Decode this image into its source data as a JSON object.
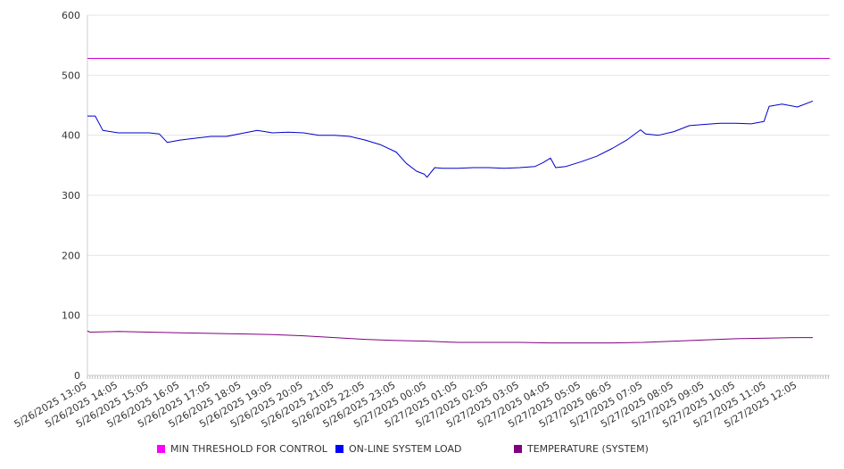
{
  "chart_data": {
    "type": "line",
    "title": "",
    "xlabel": "",
    "ylabel": "",
    "ylim": [
      0,
      600
    ],
    "yticks": [
      0,
      100,
      200,
      300,
      400,
      500,
      600
    ],
    "grid": true,
    "legend_position": "bottom",
    "categories": [
      "5/26/2025 13:05",
      "5/26/2025 14:05",
      "5/26/2025 15:05",
      "5/26/2025 16:05",
      "5/26/2025 17:05",
      "5/26/2025 18:05",
      "5/26/2025 19:05",
      "5/26/2025 20:05",
      "5/26/2025 21:05",
      "5/26/2025 22:05",
      "5/26/2025 23:05",
      "5/27/2025 00:05",
      "5/27/2025 01:05",
      "5/27/2025 02:05",
      "5/27/2025 03:05",
      "5/27/2025 04:05",
      "5/27/2025 05:05",
      "5/27/2025 06:05",
      "5/27/2025 07:05",
      "5/27/2025 08:05",
      "5/27/2025 09:05",
      "5/27/2025 10:05",
      "5/27/2025 11:05",
      "5/27/2025 12:05"
    ],
    "series": [
      {
        "name": "MIN THRESHOLD FOR CONTROL",
        "color": "#cc00cc",
        "x": [
          "5/26/2025 13:05",
          "5/27/2025 12:05"
        ],
        "extend_to_end": true,
        "values": [
          528,
          528
        ]
      },
      {
        "name": "ON-LINE SYSTEM LOAD",
        "color": "#0000cc",
        "x": [
          "5/26/2025 13:05",
          "5/26/2025 13:20",
          "5/26/2025 13:35",
          "5/26/2025 14:05",
          "5/26/2025 14:35",
          "5/26/2025 15:05",
          "5/26/2025 15:25",
          "5/26/2025 15:40",
          "5/26/2025 16:05",
          "5/26/2025 16:35",
          "5/26/2025 17:05",
          "5/26/2025 17:35",
          "5/26/2025 18:05",
          "5/26/2025 18:35",
          "5/26/2025 19:05",
          "5/26/2025 19:35",
          "5/26/2025 20:05",
          "5/26/2025 20:35",
          "5/26/2025 21:05",
          "5/26/2025 21:35",
          "5/26/2025 22:05",
          "5/26/2025 22:35",
          "5/26/2025 23:05",
          "5/26/2025 23:25",
          "5/26/2025 23:45",
          "5/27/2025 00:00",
          "5/27/2025 00:05",
          "5/27/2025 00:20",
          "5/27/2025 00:35",
          "5/27/2025 01:05",
          "5/27/2025 01:35",
          "5/27/2025 02:05",
          "5/27/2025 02:35",
          "5/27/2025 03:05",
          "5/27/2025 03:35",
          "5/27/2025 03:50",
          "5/27/2025 04:05",
          "5/27/2025 04:15",
          "5/27/2025 04:35",
          "5/27/2025 05:05",
          "5/27/2025 05:35",
          "5/27/2025 06:05",
          "5/27/2025 06:35",
          "5/27/2025 07:00",
          "5/27/2025 07:10",
          "5/27/2025 07:35",
          "5/27/2025 08:05",
          "5/27/2025 08:35",
          "5/27/2025 09:05",
          "5/27/2025 09:35",
          "5/27/2025 10:05",
          "5/27/2025 10:35",
          "5/27/2025 11:00",
          "5/27/2025 11:10",
          "5/27/2025 11:35",
          "5/27/2025 12:05",
          "5/27/2025 12:35"
        ],
        "values": [
          432,
          432,
          408,
          404,
          404,
          404,
          402,
          388,
          392,
          395,
          398,
          398,
          403,
          408,
          404,
          405,
          404,
          400,
          400,
          398,
          392,
          384,
          372,
          353,
          340,
          335,
          330,
          346,
          345,
          345,
          346,
          346,
          345,
          346,
          348,
          354,
          362,
          346,
          348,
          356,
          365,
          378,
          393,
          409,
          402,
          400,
          406,
          416,
          418,
          420,
          420,
          419,
          423,
          448,
          452,
          447,
          457
        ]
      },
      {
        "name": "TEMPERATURE (SYSTEM)",
        "color": "#800080",
        "x": [
          "5/26/2025 13:05",
          "5/26/2025 13:10",
          "5/26/2025 14:05",
          "5/26/2025 15:05",
          "5/26/2025 16:05",
          "5/26/2025 17:05",
          "5/26/2025 18:05",
          "5/26/2025 19:05",
          "5/26/2025 20:05",
          "5/26/2025 21:05",
          "5/26/2025 22:05",
          "5/26/2025 23:05",
          "5/27/2025 00:05",
          "5/27/2025 01:05",
          "5/27/2025 02:05",
          "5/27/2025 03:05",
          "5/27/2025 04:05",
          "5/27/2025 05:05",
          "5/27/2025 06:05",
          "5/27/2025 07:05",
          "5/27/2025 08:05",
          "5/27/2025 09:05",
          "5/27/2025 10:05",
          "5/27/2025 11:05",
          "5/27/2025 12:05",
          "5/27/2025 12:35"
        ],
        "values": [
          74,
          72,
          73,
          72,
          71,
          70,
          69,
          68,
          66,
          63,
          60,
          58,
          57,
          55,
          55,
          55,
          54,
          54,
          54,
          55,
          57,
          59,
          61,
          62,
          63,
          63
        ]
      }
    ]
  }
}
